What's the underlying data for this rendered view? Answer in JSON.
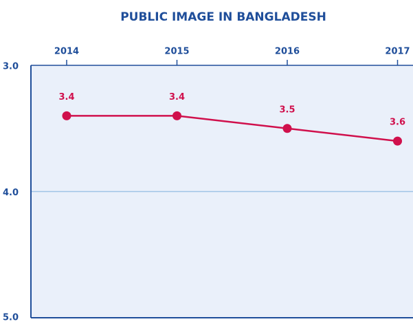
{
  "chart_data": {
    "type": "line",
    "title": "PUBLIC IMAGE IN BANGLADESH",
    "categories": [
      "2014",
      "2015",
      "2016",
      "2017"
    ],
    "series": [
      {
        "name": null,
        "color": "#d0104c",
        "values": [
          3.4,
          3.4,
          3.5,
          3.6
        ]
      }
    ],
    "ylim": [
      3,
      5
    ],
    "inverted_y": true,
    "yticks": [
      {
        "value": 3,
        "label": "3.0"
      },
      {
        "value": 4,
        "label": "4.0"
      },
      {
        "value": 5,
        "label": "5.0"
      }
    ],
    "grid": true
  }
}
